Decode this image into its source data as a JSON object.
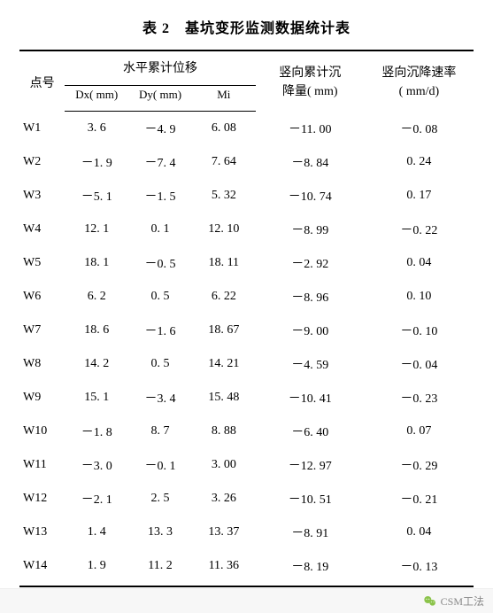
{
  "title": "表 2　基坑变形监测数据统计表",
  "headers": {
    "point": "点号",
    "horizontal_group": "水平累计位移",
    "dx": "Dx( mm)",
    "dy": "Dy( mm)",
    "mi": "Mi",
    "vertical_settle_line1": "竖向累计沉",
    "vertical_settle_line2": "降量( mm)",
    "vertical_rate_line1": "竖向沉降速率",
    "vertical_rate_line2": "( mm/d)"
  },
  "rows": [
    {
      "point": "W1",
      "dx": "3. 6",
      "dy": "－4. 9",
      "mi": "6. 08",
      "settle": "－11. 00",
      "rate": "－0. 08"
    },
    {
      "point": "W2",
      "dx": "－1. 9",
      "dy": "－7. 4",
      "mi": "7. 64",
      "settle": "－8. 84",
      "rate": "0. 24"
    },
    {
      "point": "W3",
      "dx": "－5. 1",
      "dy": "－1. 5",
      "mi": "5. 32",
      "settle": "－10. 74",
      "rate": "0. 17"
    },
    {
      "point": "W4",
      "dx": "12. 1",
      "dy": "0. 1",
      "mi": "12. 10",
      "settle": "－8. 99",
      "rate": "－0. 22"
    },
    {
      "point": "W5",
      "dx": "18. 1",
      "dy": "－0. 5",
      "mi": "18. 11",
      "settle": "－2. 92",
      "rate": "0. 04"
    },
    {
      "point": "W6",
      "dx": "6. 2",
      "dy": "0. 5",
      "mi": "6. 22",
      "settle": "－8. 96",
      "rate": "0. 10"
    },
    {
      "point": "W7",
      "dx": "18. 6",
      "dy": "－1. 6",
      "mi": "18. 67",
      "settle": "－9. 00",
      "rate": "－0. 10"
    },
    {
      "point": "W8",
      "dx": "14. 2",
      "dy": "0. 5",
      "mi": "14. 21",
      "settle": "－4. 59",
      "rate": "－0. 04"
    },
    {
      "point": "W9",
      "dx": "15. 1",
      "dy": "－3. 4",
      "mi": "15. 48",
      "settle": "－10. 41",
      "rate": "－0. 23"
    },
    {
      "point": "W10",
      "dx": "－1. 8",
      "dy": "8. 7",
      "mi": "8. 88",
      "settle": "－6. 40",
      "rate": "0. 07"
    },
    {
      "point": "W11",
      "dx": "－3. 0",
      "dy": "－0. 1",
      "mi": "3. 00",
      "settle": "－12. 97",
      "rate": "－0. 29"
    },
    {
      "point": "W12",
      "dx": "－2. 1",
      "dy": "2. 5",
      "mi": "3. 26",
      "settle": "－10. 51",
      "rate": "－0. 21"
    },
    {
      "point": "W13",
      "dx": "1. 4",
      "dy": "13. 3",
      "mi": "13. 37",
      "settle": "－8. 91",
      "rate": "0. 04"
    },
    {
      "point": "W14",
      "dx": "1. 9",
      "dy": "11. 2",
      "mi": "11. 36",
      "settle": "－8. 19",
      "rate": "－0. 13"
    }
  ],
  "footer": {
    "source": "CSM工法"
  },
  "style": {
    "background_color": "#ffffff",
    "text_color": "#000000",
    "border_color": "#000000",
    "footer_bg": "#f7f7f7",
    "footer_text": "#888888",
    "title_fontsize": 16,
    "body_fontsize": 14,
    "sub_fontsize": 13
  }
}
